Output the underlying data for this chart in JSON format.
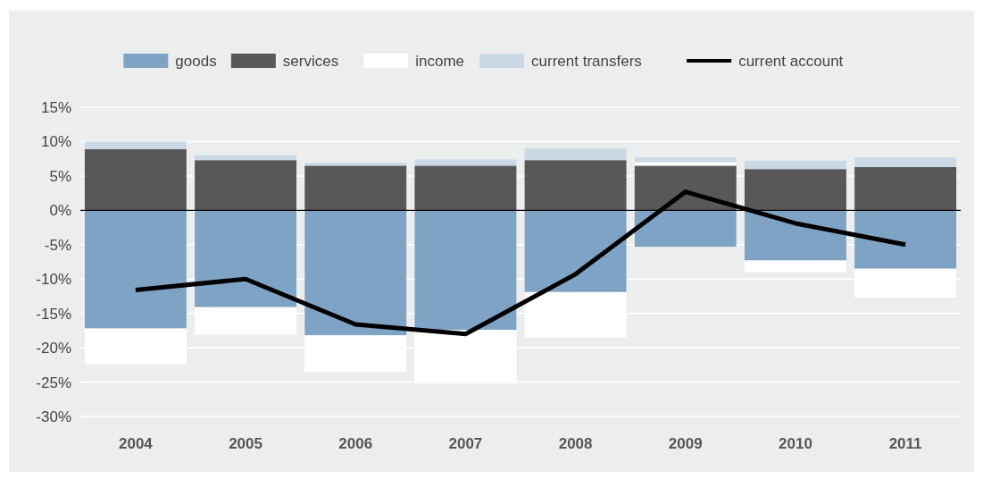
{
  "chart_data": {
    "type": "bar",
    "stacked": true,
    "categories": [
      "2004",
      "2005",
      "2006",
      "2007",
      "2008",
      "2009",
      "2010",
      "2011"
    ],
    "series": [
      {
        "name": "goods",
        "color": "#7fa3c4",
        "values": [
          -17.2,
          -14.1,
          -18.2,
          -17.4,
          -11.9,
          -5.3,
          -7.3,
          -8.5
        ]
      },
      {
        "name": "services",
        "color": "#58585a",
        "values": [
          8.9,
          7.3,
          6.5,
          6.5,
          7.3,
          6.5,
          6.0,
          6.3
        ]
      },
      {
        "name": "income",
        "color": "#ffffff",
        "values": [
          -5.2,
          -4.0,
          -5.3,
          -7.8,
          -6.6,
          0.5,
          -1.7,
          -4.2
        ]
      },
      {
        "name": "current transfers",
        "color": "#cbd9e6",
        "values": [
          1.1,
          0.7,
          0.4,
          0.9,
          1.7,
          0.7,
          1.2,
          1.4
        ]
      },
      {
        "name": "current account",
        "type": "line",
        "color": "#000000",
        "values": [
          -11.6,
          -10.0,
          -16.6,
          -18.0,
          -9.3,
          2.7,
          -1.9,
          -5.0
        ]
      }
    ],
    "ylim": [
      -30,
      15
    ],
    "yticks": [
      {
        "value": -30,
        "label": "-30%"
      },
      {
        "value": -25,
        "label": "-25%"
      },
      {
        "value": -20,
        "label": "-20%"
      },
      {
        "value": -15,
        "label": "-15%"
      },
      {
        "value": -10,
        "label": "-10%"
      },
      {
        "value": -5,
        "label": "-5%"
      },
      {
        "value": 0,
        "label": "0%"
      },
      {
        "value": 5,
        "label": "5%"
      },
      {
        "value": 10,
        "label": "10%"
      },
      {
        "value": 15,
        "label": "15%"
      }
    ],
    "ref_lines": [
      {
        "axis": "y",
        "value": 0,
        "color": "#000000"
      }
    ],
    "grid": "y",
    "legend": "top",
    "marker": "none"
  }
}
